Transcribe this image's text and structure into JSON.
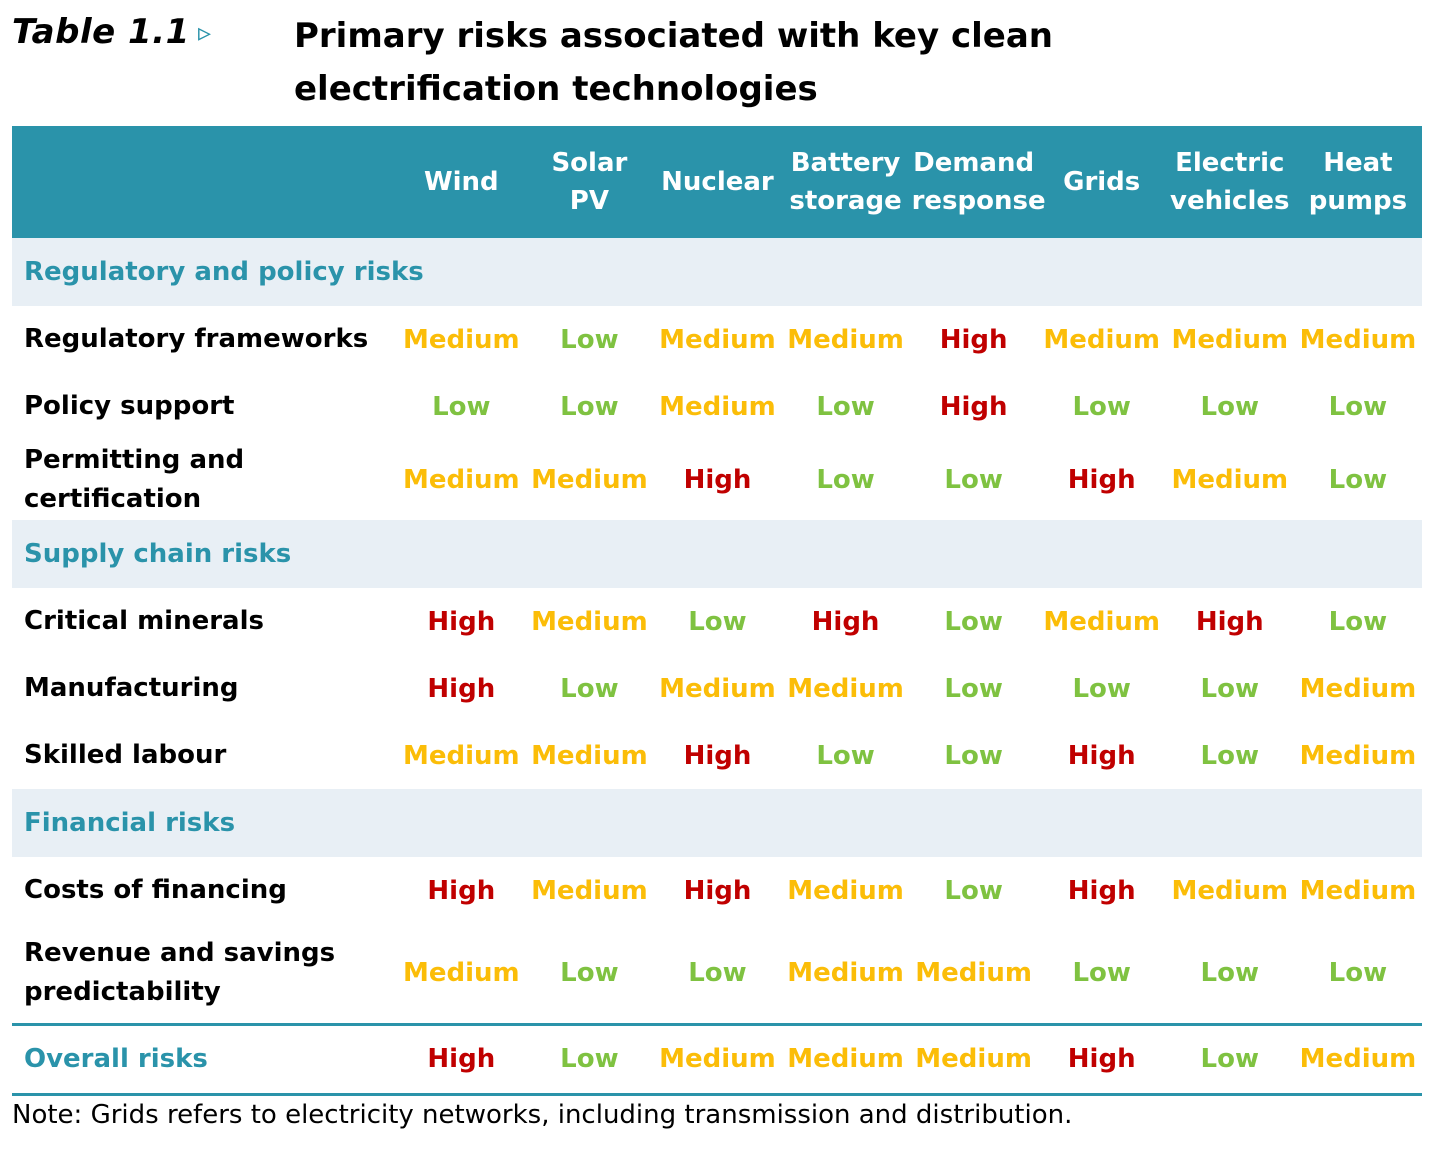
{
  "colors": {
    "accent": "#2a93aa",
    "section_bg": "#e8eff5",
    "high": "#c00000",
    "medium": "#fbbd08",
    "low": "#7fc241"
  },
  "title": {
    "label": "Table 1.1",
    "arrow_icon": "triangle-right-icon",
    "arrow": "▹",
    "text": "Primary risks associated with key clean electrification technologies"
  },
  "header": [
    "Wind",
    "Solar PV",
    "Nuclear",
    "Battery\nstorage",
    "Demand\nresponse",
    "Grids",
    "Electric\nvehicles",
    "Heat\npumps"
  ],
  "sections": [
    {
      "title": "Regulatory and policy risks",
      "rows": [
        {
          "label": "Regulatory frameworks",
          "values": [
            "Medium",
            "Low",
            "Medium",
            "Medium",
            "High",
            "Medium",
            "Medium",
            "Medium"
          ]
        },
        {
          "label": "Policy support",
          "values": [
            "Low",
            "Low",
            "Medium",
            "Low",
            "High",
            "Low",
            "Low",
            "Low"
          ]
        },
        {
          "label": "Permitting and certification",
          "values": [
            "Medium",
            "Medium",
            "High",
            "Low",
            "Low",
            "High",
            "Medium",
            "Low"
          ]
        }
      ]
    },
    {
      "title": "Supply chain risks",
      "rows": [
        {
          "label": "Critical minerals",
          "values": [
            "High",
            "Medium",
            "Low",
            "High",
            "Low",
            "Medium",
            "High",
            "Low"
          ]
        },
        {
          "label": "Manufacturing",
          "values": [
            "High",
            "Low",
            "Medium",
            "Medium",
            "Low",
            "Low",
            "Low",
            "Medium"
          ]
        },
        {
          "label": "Skilled labour",
          "values": [
            "Medium",
            "Medium",
            "High",
            "Low",
            "Low",
            "High",
            "Low",
            "Medium"
          ]
        }
      ]
    },
    {
      "title": "Financial risks",
      "rows": [
        {
          "label": "Costs of financing",
          "values": [
            "High",
            "Medium",
            "High",
            "Medium",
            "Low",
            "High",
            "Medium",
            "Medium"
          ]
        },
        {
          "label": "Revenue and savings\npredictability",
          "values": [
            "Medium",
            "Low",
            "Low",
            "Medium",
            "Medium",
            "Low",
            "Low",
            "Low"
          ]
        }
      ]
    }
  ],
  "overall": {
    "label": "Overall risks",
    "values": [
      "High",
      "Low",
      "Medium",
      "Medium",
      "Medium",
      "High",
      "Low",
      "Medium"
    ]
  },
  "note": "Note: Grids refers to electricity networks, including transmission and distribution."
}
